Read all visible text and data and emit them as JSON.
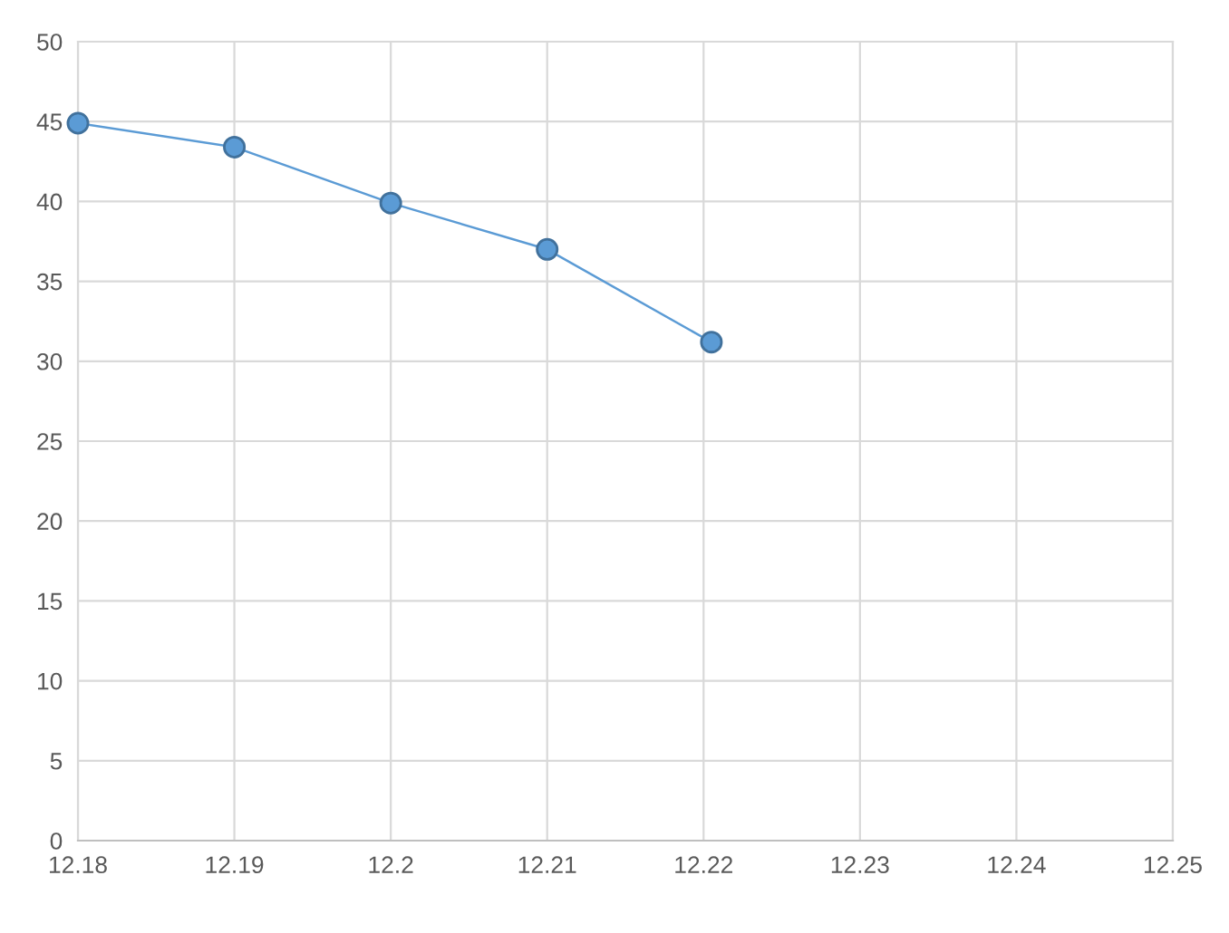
{
  "chart_data": {
    "type": "line",
    "x": [
      12.18,
      12.19,
      12.2,
      12.21,
      12.2205
    ],
    "series": [
      {
        "color": "#5b9bd5",
        "values": [
          44.9,
          43.4,
          39.9,
          37.0,
          31.2
        ]
      }
    ],
    "xlim": [
      12.18,
      12.25
    ],
    "xticks": [
      12.18,
      12.19,
      12.2,
      12.21,
      12.22,
      12.23,
      12.24,
      12.25
    ],
    "ylim": [
      0,
      50
    ],
    "yticks": [
      0,
      5,
      10,
      15,
      20,
      25,
      30,
      35,
      40,
      45,
      50
    ],
    "grid": true,
    "marker": "circle",
    "line_style": "solid"
  }
}
